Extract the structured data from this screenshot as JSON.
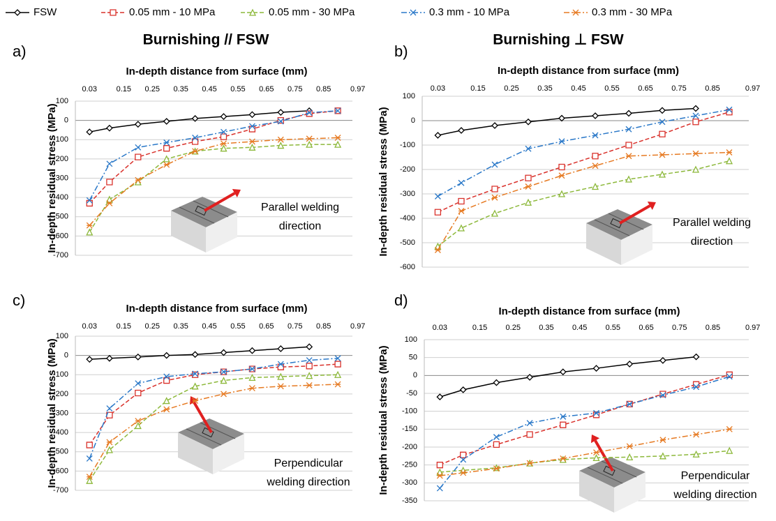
{
  "legend": [
    {
      "name": "FSW",
      "color": "#000000",
      "marker": "diamond",
      "dash": "solid"
    },
    {
      "name": "0.05 mm - 10 MPa",
      "color": "#d9302a",
      "marker": "square",
      "dash": "dashed"
    },
    {
      "name": "0.05 mm - 30 MPa",
      "color": "#8cb83a",
      "marker": "triangle",
      "dash": "dashed"
    },
    {
      "name": "0.3 mm - 10 MPa",
      "color": "#2a78c8",
      "marker": "x",
      "dash": "dashdot"
    },
    {
      "name": "0.3 mm - 30 MPa",
      "color": "#e67a22",
      "marker": "asterisk",
      "dash": "dashdot"
    }
  ],
  "chart_data": [
    {
      "type": "line",
      "label": "a)",
      "title": "Burnishing // FSW",
      "x_label": "In-depth distance from surface (mm)",
      "y_label": "In-depth residual stress (MPa)",
      "annotation": [
        "Parallel welding",
        "direction"
      ],
      "x": [
        0.03,
        0.1,
        0.2,
        0.3,
        0.4,
        0.5,
        0.6,
        0.7,
        0.8,
        0.9
      ],
      "xlim": [
        0,
        1
      ],
      "xticks": [
        0.03,
        0.15,
        0.25,
        0.35,
        0.45,
        0.55,
        0.65,
        0.75,
        0.85,
        0.97
      ],
      "ylim": [
        -700,
        100
      ],
      "yticks": [
        100,
        0,
        -100,
        -200,
        -300,
        -400,
        -500,
        -600,
        -700
      ],
      "grid": true,
      "series": [
        {
          "values": [
            -60,
            -40,
            -20,
            -5,
            10,
            20,
            30,
            42,
            50,
            null
          ]
        },
        {
          "values": [
            -430,
            -320,
            -190,
            -145,
            -110,
            -85,
            -45,
            0,
            35,
            50
          ]
        },
        {
          "values": [
            -580,
            -410,
            -320,
            -200,
            -160,
            -145,
            -140,
            -130,
            -125,
            -125
          ]
        },
        {
          "values": [
            -415,
            -225,
            -140,
            -115,
            -90,
            -60,
            -30,
            -5,
            40,
            50
          ]
        },
        {
          "values": [
            -545,
            -430,
            -310,
            -230,
            -160,
            -120,
            -110,
            -100,
            -95,
            -90
          ]
        }
      ]
    },
    {
      "type": "line",
      "label": "b)",
      "title": "Burnishing ⊥ FSW",
      "x_label": "In-depth distance from surface (mm)",
      "y_label": "In-depth residual stress (MPa)",
      "annotation": [
        "Parallel welding",
        "direction"
      ],
      "x": [
        0.03,
        0.1,
        0.2,
        0.3,
        0.4,
        0.5,
        0.6,
        0.7,
        0.8,
        0.9
      ],
      "xlim": [
        0,
        1
      ],
      "xticks": [
        0.03,
        0.15,
        0.25,
        0.35,
        0.45,
        0.55,
        0.65,
        0.75,
        0.85,
        0.97
      ],
      "ylim": [
        -600,
        100
      ],
      "yticks": [
        100,
        0,
        -100,
        -200,
        -300,
        -400,
        -500,
        -600
      ],
      "grid": true,
      "series": [
        {
          "values": [
            -60,
            -40,
            -20,
            -5,
            10,
            20,
            30,
            42,
            50,
            null
          ]
        },
        {
          "values": [
            -375,
            -330,
            -280,
            -235,
            -190,
            -145,
            -100,
            -55,
            -5,
            35
          ]
        },
        {
          "values": [
            -515,
            -440,
            -380,
            -335,
            -300,
            -270,
            -240,
            -220,
            -200,
            -165
          ]
        },
        {
          "values": [
            -310,
            -255,
            -180,
            -115,
            -85,
            -60,
            -35,
            -5,
            20,
            45
          ]
        },
        {
          "values": [
            -530,
            -370,
            -315,
            -270,
            -225,
            -185,
            -145,
            -140,
            -135,
            -130
          ]
        }
      ]
    },
    {
      "type": "line",
      "label": "c)",
      "x_label": "In-depth distance from surface (mm)",
      "y_label": "In-depth residual stress (MPa)",
      "annotation": [
        "Perpendicular",
        "welding direction"
      ],
      "x": [
        0.03,
        0.1,
        0.2,
        0.3,
        0.4,
        0.5,
        0.6,
        0.7,
        0.8,
        0.9
      ],
      "xlim": [
        0,
        1
      ],
      "xticks": [
        0.03,
        0.15,
        0.25,
        0.35,
        0.45,
        0.55,
        0.65,
        0.75,
        0.85,
        0.97
      ],
      "ylim": [
        -700,
        100
      ],
      "yticks": [
        100,
        0,
        -100,
        -200,
        -300,
        -400,
        -500,
        -600,
        -700
      ],
      "grid": true,
      "series": [
        {
          "values": [
            -20,
            -15,
            -8,
            0,
            5,
            15,
            25,
            35,
            45,
            null
          ]
        },
        {
          "values": [
            -465,
            -310,
            -195,
            -130,
            -100,
            -85,
            -70,
            -60,
            -55,
            -45
          ]
        },
        {
          "values": [
            -650,
            -490,
            -365,
            -235,
            -160,
            -130,
            -115,
            -110,
            -105,
            -100
          ]
        },
        {
          "values": [
            -535,
            -275,
            -145,
            -110,
            -95,
            -85,
            -70,
            -45,
            -25,
            -15
          ]
        },
        {
          "values": [
            -630,
            -450,
            -340,
            -280,
            -235,
            -200,
            -170,
            -160,
            -155,
            -150
          ]
        }
      ]
    },
    {
      "type": "line",
      "label": "d)",
      "x_label": "In-depth distance from surface (mm)",
      "y_label": "In-depth residual stress (MPa)",
      "annotation": [
        "Perpendicular",
        "welding direction"
      ],
      "x": [
        0.03,
        0.1,
        0.2,
        0.3,
        0.4,
        0.5,
        0.6,
        0.7,
        0.8,
        0.9
      ],
      "xlim": [
        0,
        1
      ],
      "xticks": [
        0.03,
        0.15,
        0.25,
        0.35,
        0.45,
        0.55,
        0.65,
        0.75,
        0.85,
        0.97
      ],
      "ylim": [
        -350,
        100
      ],
      "yticks": [
        100,
        50,
        0,
        -50,
        -100,
        -150,
        -200,
        -250,
        -300,
        -350
      ],
      "grid": true,
      "series": [
        {
          "values": [
            -60,
            -40,
            -20,
            -5,
            10,
            20,
            32,
            42,
            52,
            null
          ]
        },
        {
          "values": [
            -250,
            -222,
            -193,
            -165,
            -138,
            -110,
            -80,
            -52,
            -25,
            2
          ]
        },
        {
          "values": [
            -270,
            -265,
            -258,
            -245,
            -235,
            -230,
            -228,
            -225,
            -220,
            -210
          ]
        },
        {
          "values": [
            -315,
            -235,
            -172,
            -133,
            -115,
            -105,
            -80,
            -55,
            -32,
            -3
          ]
        },
        {
          "values": [
            -280,
            -272,
            -260,
            -245,
            -232,
            -215,
            -198,
            -180,
            -165,
            -150
          ]
        }
      ]
    }
  ]
}
